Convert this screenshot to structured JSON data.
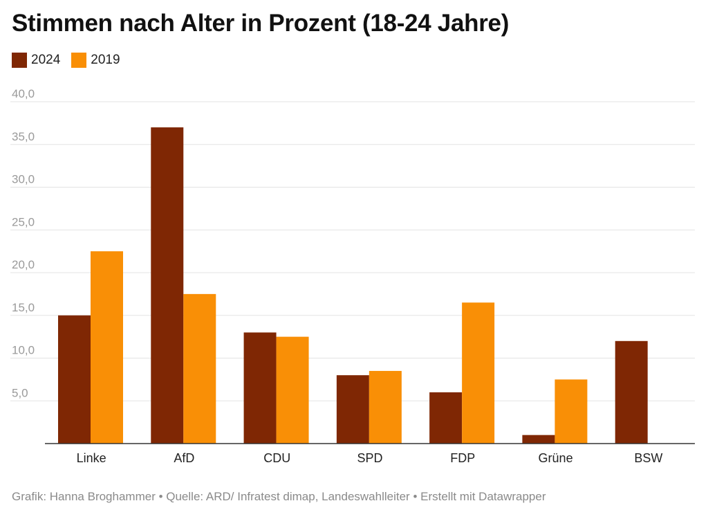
{
  "title": "Stimmen nach Alter in Prozent (18-24 Jahre)",
  "legend": [
    {
      "label": "2024",
      "color": "#7F2704"
    },
    {
      "label": "2019",
      "color": "#F98F06"
    }
  ],
  "footer": "Grafik: Hanna Broghammer • Quelle: ARD/ Infratest dimap, Landeswahlleiter • Erstellt mit Datawrapper",
  "chart_data": {
    "type": "bar",
    "title": "Stimmen nach Alter in Prozent (18-24 Jahre)",
    "xlabel": "",
    "ylabel": "",
    "ylim": [
      0,
      40
    ],
    "yticks": [
      5,
      10,
      15,
      20,
      25,
      30,
      35,
      40
    ],
    "ytick_labels": [
      "5,0",
      "10,0",
      "15,0",
      "20,0",
      "25,0",
      "30,0",
      "35,0",
      "40,0"
    ],
    "grid": true,
    "legend_position": "top-left",
    "categories": [
      "Linke",
      "AfD",
      "CDU",
      "SPD",
      "FDP",
      "Grüne",
      "BSW"
    ],
    "series": [
      {
        "name": "2024",
        "color": "#7F2704",
        "values": [
          15.0,
          37.0,
          13.0,
          8.0,
          6.0,
          1.0,
          12.0
        ]
      },
      {
        "name": "2019",
        "color": "#F98F06",
        "values": [
          22.5,
          17.5,
          12.5,
          8.5,
          16.5,
          7.5,
          null
        ]
      }
    ]
  }
}
